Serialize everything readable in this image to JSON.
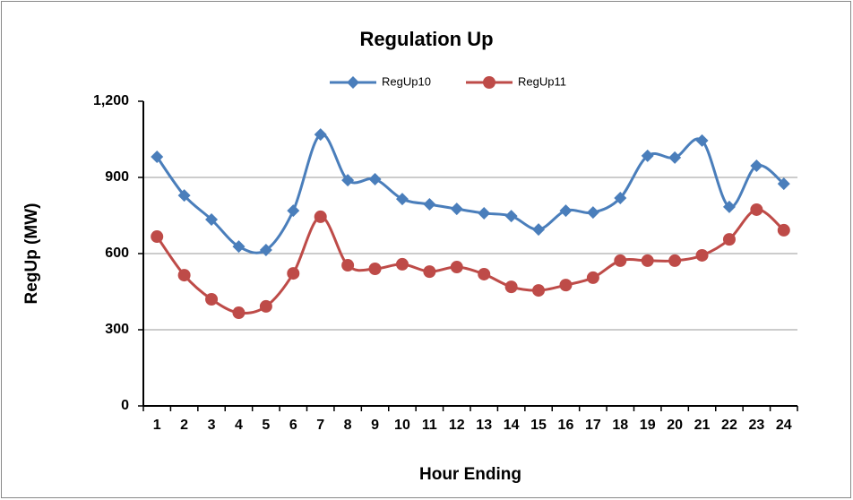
{
  "chart_data": {
    "type": "line",
    "title": "Regulation Up",
    "x_label": "Hour Ending",
    "y_label": "RegUp (MW)",
    "categories": [
      "1",
      "2",
      "3",
      "4",
      "5",
      "6",
      "7",
      "8",
      "9",
      "10",
      "11",
      "12",
      "13",
      "14",
      "15",
      "16",
      "17",
      "18",
      "19",
      "20",
      "21",
      "22",
      "23",
      "24"
    ],
    "series": [
      {
        "name": "RegUp10",
        "color": "#4a7ebb",
        "marker": "diamond",
        "values": [
          981,
          829,
          734,
          628,
          614,
          769,
          1069,
          889,
          893,
          815,
          794,
          776,
          759,
          748,
          695,
          769,
          762,
          819,
          985,
          978,
          1045,
          784,
          946,
          875
        ]
      },
      {
        "name": "RegUp11",
        "color": "#be4b48",
        "marker": "circle",
        "values": [
          667,
          515,
          420,
          367,
          392,
          522,
          745,
          554,
          540,
          558,
          529,
          547,
          519,
          469,
          455,
          476,
          505,
          572,
          572,
          572,
          593,
          656,
          773,
          692
        ]
      }
    ],
    "ylim": [
      0,
      1200
    ],
    "yticks": [
      0,
      300,
      600,
      900,
      {
        "value": 1200,
        "label": "1,200"
      }
    ],
    "grid": true,
    "smooth": true,
    "legend": "top"
  }
}
